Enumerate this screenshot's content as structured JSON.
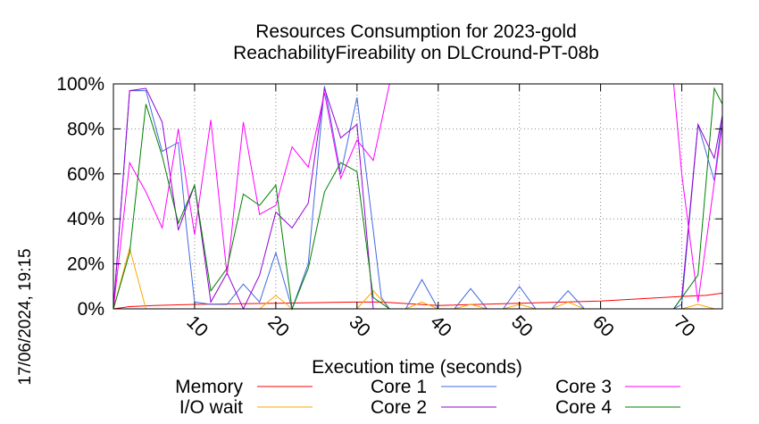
{
  "chart_data": {
    "type": "line",
    "title": "Resources Consumption for 2023-gold",
    "subtitle": "ReachabilityFireability on DLCround-PT-08b",
    "xlabel": "Execution time (seconds)",
    "ylabel": "",
    "side_label": "17/06/2024, 19:15",
    "xlim": [
      0,
      75
    ],
    "ylim": [
      0,
      100
    ],
    "xticks": [
      10,
      20,
      30,
      40,
      50,
      60,
      70
    ],
    "xtick_labels": [
      "10",
      "20",
      "30",
      "40",
      "50",
      "60",
      "70"
    ],
    "yticks": [
      0,
      20,
      40,
      60,
      80,
      100
    ],
    "ytick_labels": [
      "0%",
      "20%",
      "40%",
      "60%",
      "80%",
      "100%"
    ],
    "grid": true,
    "legend_position": "bottom",
    "series": [
      {
        "name": "Memory",
        "color": "#ff0000",
        "points": [
          [
            0,
            0
          ],
          [
            2,
            1
          ],
          [
            5,
            1.5
          ],
          [
            10,
            2
          ],
          [
            20,
            2.5
          ],
          [
            30,
            3
          ],
          [
            33,
            3
          ],
          [
            40,
            1.5
          ],
          [
            50,
            2.5
          ],
          [
            60,
            3.5
          ],
          [
            70,
            5.5
          ],
          [
            73,
            6
          ],
          [
            75,
            7
          ]
        ]
      },
      {
        "name": "I/O wait",
        "color": "#ffa500",
        "points": [
          [
            0,
            0
          ],
          [
            2,
            27
          ],
          [
            4,
            0
          ],
          [
            6,
            0
          ],
          [
            8,
            0
          ],
          [
            10,
            0
          ],
          [
            12,
            0
          ],
          [
            14,
            0
          ],
          [
            16,
            0
          ],
          [
            18,
            0
          ],
          [
            20,
            6
          ],
          [
            22,
            0
          ],
          [
            24,
            0
          ],
          [
            26,
            0
          ],
          [
            28,
            0
          ],
          [
            30,
            0
          ],
          [
            32,
            8
          ],
          [
            34,
            0
          ],
          [
            36,
            0
          ],
          [
            38,
            3
          ],
          [
            40,
            0
          ],
          [
            42,
            0
          ],
          [
            44,
            2
          ],
          [
            46,
            0
          ],
          [
            48,
            0
          ],
          [
            50,
            2
          ],
          [
            52,
            0
          ],
          [
            54,
            0
          ],
          [
            56,
            3
          ],
          [
            58,
            0
          ],
          [
            60,
            0
          ],
          [
            62,
            0
          ],
          [
            64,
            0
          ],
          [
            66,
            0
          ],
          [
            68,
            0
          ],
          [
            70,
            0
          ],
          [
            72,
            2
          ],
          [
            74,
            0
          ],
          [
            75,
            0
          ]
        ]
      },
      {
        "name": "Core 1",
        "color": "#4169e1",
        "points": [
          [
            0,
            0
          ],
          [
            2,
            97
          ],
          [
            4,
            97
          ],
          [
            6,
            70
          ],
          [
            8,
            74
          ],
          [
            9,
            36
          ],
          [
            10,
            3
          ],
          [
            12,
            2
          ],
          [
            14,
            2
          ],
          [
            16,
            11
          ],
          [
            18,
            3
          ],
          [
            20,
            25
          ],
          [
            22,
            0
          ],
          [
            24,
            20
          ],
          [
            26,
            99
          ],
          [
            28,
            60
          ],
          [
            30,
            94
          ],
          [
            32,
            35
          ],
          [
            33,
            5
          ],
          [
            34,
            0
          ],
          [
            36,
            0
          ],
          [
            38,
            13
          ],
          [
            40,
            0
          ],
          [
            42,
            0
          ],
          [
            44,
            9
          ],
          [
            46,
            0
          ],
          [
            48,
            0
          ],
          [
            50,
            10
          ],
          [
            52,
            0
          ],
          [
            54,
            0
          ],
          [
            56,
            8
          ],
          [
            58,
            0
          ],
          [
            60,
            0
          ],
          [
            62,
            0
          ],
          [
            64,
            0
          ],
          [
            66,
            0
          ],
          [
            68,
            0
          ],
          [
            69,
            0
          ],
          [
            70,
            2
          ],
          [
            72,
            82
          ],
          [
            74,
            57
          ],
          [
            75,
            86
          ]
        ]
      },
      {
        "name": "Core 2",
        "color": "#9400d3",
        "points": [
          [
            0,
            0
          ],
          [
            2,
            97
          ],
          [
            4,
            98
          ],
          [
            6,
            83
          ],
          [
            8,
            35
          ],
          [
            9,
            45
          ],
          [
            10,
            55
          ],
          [
            12,
            3
          ],
          [
            14,
            16
          ],
          [
            16,
            0
          ],
          [
            18,
            15
          ],
          [
            20,
            43
          ],
          [
            22,
            36
          ],
          [
            24,
            47
          ],
          [
            26,
            98
          ],
          [
            28,
            76
          ],
          [
            30,
            82
          ],
          [
            32,
            0
          ],
          [
            34,
            0
          ],
          [
            36,
            0
          ],
          [
            38,
            0
          ],
          [
            40,
            0
          ],
          [
            42,
            0
          ],
          [
            44,
            0
          ],
          [
            46,
            0
          ],
          [
            48,
            0
          ],
          [
            50,
            0
          ],
          [
            52,
            0
          ],
          [
            54,
            0
          ],
          [
            56,
            0
          ],
          [
            58,
            0
          ],
          [
            60,
            0
          ],
          [
            62,
            0
          ],
          [
            64,
            0
          ],
          [
            66,
            0
          ],
          [
            68,
            0
          ],
          [
            69,
            0
          ],
          [
            70,
            5
          ],
          [
            72,
            82
          ],
          [
            74,
            67
          ],
          [
            75,
            86
          ]
        ]
      },
      {
        "name": "Core 3",
        "color": "#ff00ff",
        "points": [
          [
            0,
            0
          ],
          [
            2,
            65
          ],
          [
            4,
            52
          ],
          [
            6,
            36
          ],
          [
            8,
            80
          ],
          [
            10,
            33
          ],
          [
            12,
            84
          ],
          [
            14,
            15
          ],
          [
            16,
            83
          ],
          [
            18,
            42
          ],
          [
            20,
            46
          ],
          [
            22,
            72
          ],
          [
            24,
            63
          ],
          [
            26,
            96
          ],
          [
            28,
            58
          ],
          [
            30,
            75
          ],
          [
            32,
            66
          ],
          [
            34,
            100
          ],
          [
            36,
            100
          ],
          [
            38,
            100
          ],
          [
            40,
            100
          ],
          [
            44,
            100
          ],
          [
            48,
            100
          ],
          [
            52,
            100
          ],
          [
            56,
            100
          ],
          [
            60,
            100
          ],
          [
            64,
            100
          ],
          [
            68,
            100
          ],
          [
            69,
            100
          ],
          [
            70,
            60
          ],
          [
            72,
            3
          ],
          [
            74,
            56
          ],
          [
            75,
            82
          ]
        ]
      },
      {
        "name": "Core 4",
        "color": "#008000",
        "points": [
          [
            0,
            0
          ],
          [
            2,
            25
          ],
          [
            4,
            91
          ],
          [
            6,
            68
          ],
          [
            8,
            38
          ],
          [
            10,
            55
          ],
          [
            12,
            8
          ],
          [
            14,
            18
          ],
          [
            16,
            51
          ],
          [
            18,
            46
          ],
          [
            20,
            55
          ],
          [
            22,
            0
          ],
          [
            24,
            18
          ],
          [
            26,
            52
          ],
          [
            28,
            65
          ],
          [
            30,
            61
          ],
          [
            32,
            5
          ],
          [
            34,
            0
          ],
          [
            36,
            0
          ],
          [
            38,
            0
          ],
          [
            40,
            0
          ],
          [
            42,
            0
          ],
          [
            44,
            0
          ],
          [
            46,
            0
          ],
          [
            48,
            0
          ],
          [
            50,
            0
          ],
          [
            52,
            0
          ],
          [
            54,
            0
          ],
          [
            56,
            0
          ],
          [
            58,
            0
          ],
          [
            60,
            0
          ],
          [
            62,
            0
          ],
          [
            64,
            0
          ],
          [
            66,
            0
          ],
          [
            68,
            0
          ],
          [
            69,
            0
          ],
          [
            70,
            5
          ],
          [
            72,
            15
          ],
          [
            74,
            98
          ],
          [
            75,
            91
          ]
        ]
      }
    ]
  }
}
